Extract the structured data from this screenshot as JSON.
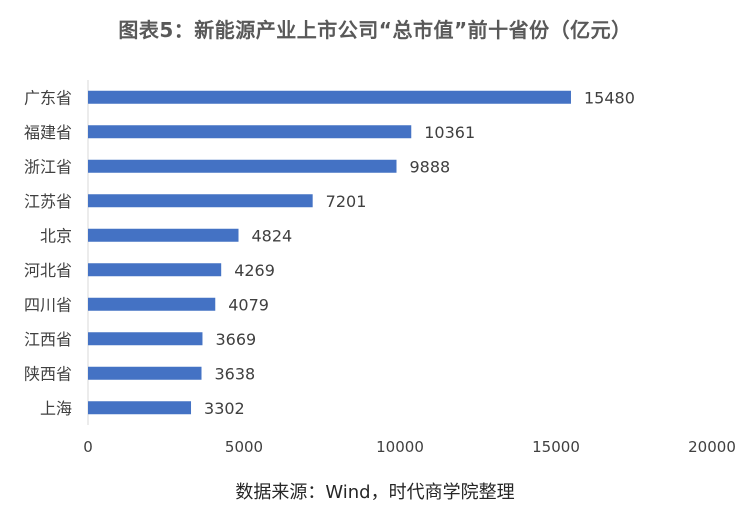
{
  "chart_data": {
    "type": "bar",
    "orientation": "horizontal",
    "title": "图表5：新能源产业上市公司“总市值”前十省份（亿元）",
    "categories": [
      "广东省",
      "福建省",
      "浙江省",
      "江苏省",
      "北京",
      "河北省",
      "四川省",
      "江西省",
      "陕西省",
      "上海"
    ],
    "values": [
      15480,
      10361,
      9888,
      7201,
      4824,
      4269,
      4079,
      3669,
      3638,
      3302
    ],
    "xlim": [
      0,
      20000
    ],
    "x_ticks": [
      "0",
      "5000",
      "10000",
      "15000",
      "20000"
    ],
    "data_labels": true,
    "grid": false,
    "bar_color": "#4472C4",
    "xlabel": "",
    "ylabel": ""
  },
  "source": "数据来源：Wind，时代商学院整理"
}
